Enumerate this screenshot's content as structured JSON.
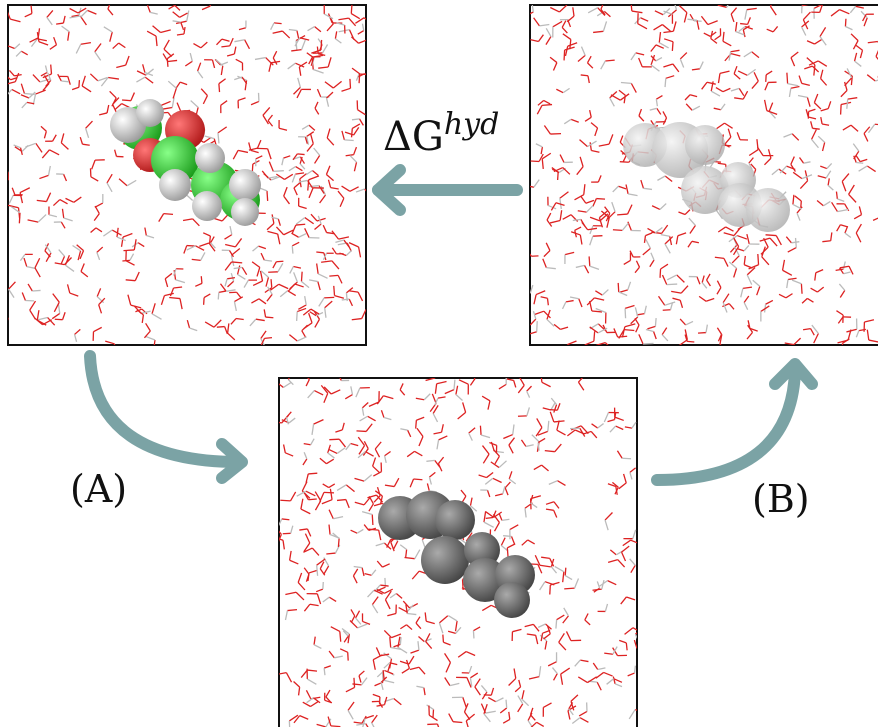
{
  "labels": {
    "delta_g": "ΔG",
    "delta_g_sup": "hyd",
    "a": "(A)",
    "b": "(B)"
  }
}
